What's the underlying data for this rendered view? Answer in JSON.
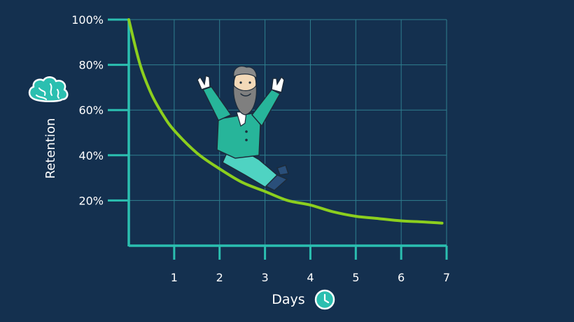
{
  "colors": {
    "background": "#14304f",
    "axis": "#2bbfb0",
    "grid": "#2f7f8f",
    "curve": "#8ccf1e",
    "text": "#ffffff",
    "icon_fill": "#2bbfb0",
    "illustration_jacket": "#27b59a",
    "illustration_trousers": "#4fd3c2"
  },
  "icons": {
    "y_axis_icon": "brain-icon",
    "x_axis_icon": "clock-icon",
    "illustration": "bearded-man-sliding-illustration"
  },
  "chart_data": {
    "type": "line",
    "title": "",
    "xlabel": "Days",
    "ylabel": "Retention",
    "xlim": [
      0,
      7
    ],
    "ylim": [
      0,
      100
    ],
    "x_ticks": [
      1,
      2,
      3,
      4,
      5,
      6,
      7
    ],
    "x_tick_labels": [
      "1",
      "2",
      "3",
      "4",
      "5",
      "6",
      "7"
    ],
    "y_ticks": [
      20,
      40,
      60,
      80,
      100
    ],
    "y_tick_labels": [
      "20%",
      "40%",
      "60%",
      "80%",
      "100%"
    ],
    "grid": true,
    "legend": "none",
    "series": [
      {
        "x": [
          0,
          0.25,
          0.5,
          0.75,
          1,
          1.5,
          2,
          2.5,
          3,
          3.5,
          4,
          4.5,
          5,
          5.5,
          6,
          6.5,
          6.9
        ],
        "y": [
          100,
          80,
          67,
          58,
          51,
          41,
          34,
          28,
          24,
          20,
          18,
          15,
          13,
          12,
          11,
          10.5,
          10
        ]
      }
    ]
  }
}
